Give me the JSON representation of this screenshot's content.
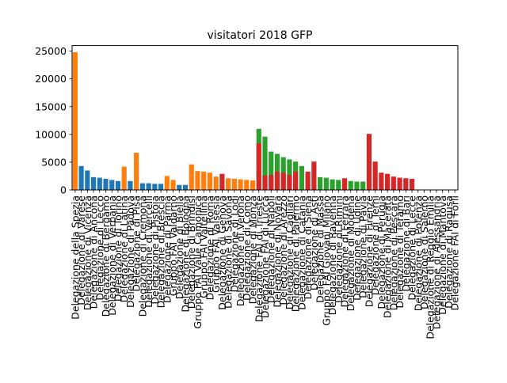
{
  "chart_data": {
    "type": "bar",
    "title": "visitatori  2018  GFP",
    "xlabel": "",
    "ylabel": "",
    "ylim": [
      0,
      26000
    ],
    "yticks": [
      0,
      5000,
      10000,
      15000,
      20000,
      25000
    ],
    "ytick_labels": [
      "0",
      "5000",
      "10000",
      "15000",
      "20000",
      "25000"
    ],
    "grid": false,
    "legend": false,
    "series_colors": [
      "#1f77b4",
      "#ff7f0e",
      "#2ca02c",
      "#d62728"
    ],
    "tick_labels": [
      "Delegazione della Spezia",
      "Delegazione di Varese",
      "Delegazione di Vicenza",
      "Delegazione di Ancona",
      "Delegazione di Lecco",
      "Delegazione di Bergamo",
      "Delegazione di Verbania",
      "Delegazione di Torino",
      "Delegazione di Latina",
      "Delegazione di Padova",
      "Delegazione di Pisa",
      "Delegazione di Cremona",
      "Delegazione di Vercelli",
      "Delegazione di Pistoia",
      "Delegazione di Brescia",
      "Delegazione di Parma",
      "Gruppo FAI Valdarno",
      "Delegazione di Biella",
      "Delegazione di Bologna",
      "Delegazione di Brindisi",
      "Gruppo FAI Valle Camonica",
      "Gruppo FAI Valtellina",
      "Delegazione di Roma",
      "Gruppo FAI Valsesia",
      "Delegazione di Genova",
      "Delegazione di Savona",
      "Delegazione di Lodi",
      "Delegazione di Verona",
      "Delegazione di Como",
      "Delegazione di Monza",
      "Delegazione FAI di Trieste",
      "Delegazione FAI di Lucca",
      "Delegazione di Napoli",
      "Delegazione di Novara",
      "Delegazione di Arezzo",
      "Delegazione di Cagliari",
      "Delegazione di Palermo",
      "Delegazione di Catania",
      "Delegazione di Siena",
      "Delegazione di Asti",
      "Delegazione di Massa",
      "Gruppo FAI Giovani Milano",
      "Delegazione di Ravenna",
      "Delegazione di Rimini",
      "Delegazione di Ferrara",
      "Delegazione di Modena",
      "Delegazione di Udine",
      "Delegazione di Pavia",
      "Delegazione di Firenze",
      "Delegazione di Terni",
      "Delegazione di Perugia",
      "Delegazione di Macerata",
      "Delegazione di Pescara",
      "Delegazione di Teramo",
      "Delegazione di Bari",
      "Delegazione di Lecce",
      "Delegazione di Potenza",
      "Delegazione di Salerno",
      "Delegazione di Reggio Emilia",
      "Delegazione di Alessandria",
      "Delegazione di Mantova",
      "Delegazione di Ragusa",
      "Delegazione FAI di Forlì"
    ],
    "bars": [
      {
        "series": 1,
        "value": 24800
      },
      {
        "series": 0,
        "value": 4300
      },
      {
        "series": 0,
        "value": 3500
      },
      {
        "series": 0,
        "value": 2300
      },
      {
        "series": 0,
        "value": 2200
      },
      {
        "series": 0,
        "value": 2000
      },
      {
        "series": 0,
        "value": 1800
      },
      {
        "series": 0,
        "value": 1600
      },
      {
        "series": 1,
        "value": 4200
      },
      {
        "series": 0,
        "value": 1600
      },
      {
        "series": 1,
        "value": 6700
      },
      {
        "series": 0,
        "value": 1200
      },
      {
        "series": 0,
        "value": 1200
      },
      {
        "series": 0,
        "value": 1100
      },
      {
        "series": 0,
        "value": 1100
      },
      {
        "series": 1,
        "value": 2500
      },
      {
        "series": 1,
        "value": 1800
      },
      {
        "series": 0,
        "value": 900
      },
      {
        "series": 0,
        "value": 900
      },
      {
        "series": 1,
        "value": 4600
      },
      {
        "series": 1,
        "value": 3400
      },
      {
        "series": 1,
        "value": 3300
      },
      {
        "series": 1,
        "value": 3100
      },
      {
        "series": 1,
        "value": 2400
      },
      {
        "series": 3,
        "value": 2900
      },
      {
        "series": 1,
        "value": 2100
      },
      {
        "series": 1,
        "value": 2000
      },
      {
        "series": 1,
        "value": 1900
      },
      {
        "series": 1,
        "value": 1800
      },
      {
        "series": 1,
        "value": 1700
      },
      {
        "series": 2,
        "value": 11000
      },
      {
        "series": 2,
        "value": 9600
      },
      {
        "series": 2,
        "value": 6900
      },
      {
        "series": 2,
        "value": 6500
      },
      {
        "series": 2,
        "value": 5900
      },
      {
        "series": 2,
        "value": 5500
      },
      {
        "series": 2,
        "value": 5100
      },
      {
        "series": 2,
        "value": 4300
      },
      {
        "series": 3,
        "value": 3300
      },
      {
        "series": 3,
        "value": 5100
      },
      {
        "series": 2,
        "value": 2300
      },
      {
        "series": 2,
        "value": 2200
      },
      {
        "series": 2,
        "value": 1900
      },
      {
        "series": 2,
        "value": 1800
      },
      {
        "series": 3,
        "value": 2100
      },
      {
        "series": 2,
        "value": 1600
      },
      {
        "series": 2,
        "value": 1500
      },
      {
        "series": 2,
        "value": 1500
      },
      {
        "series": 3,
        "value": 10100
      },
      {
        "series": 3,
        "value": 5100
      },
      {
        "series": 3,
        "value": 3100
      },
      {
        "series": 3,
        "value": 2900
      },
      {
        "series": 3,
        "value": 2400
      },
      {
        "series": 3,
        "value": 2200
      },
      {
        "series": 3,
        "value": 2100
      },
      {
        "series": 3,
        "value": 2000
      }
    ],
    "overlay_bars": [
      {
        "index": 30,
        "series": 3,
        "value": 8400
      },
      {
        "index": 31,
        "series": 3,
        "value": 2600
      },
      {
        "index": 32,
        "series": 3,
        "value": 2700
      },
      {
        "index": 33,
        "series": 3,
        "value": 3300
      },
      {
        "index": 34,
        "series": 3,
        "value": 3100
      },
      {
        "index": 35,
        "series": 3,
        "value": 2700
      },
      {
        "index": 36,
        "series": 3,
        "value": 3300
      }
    ]
  }
}
